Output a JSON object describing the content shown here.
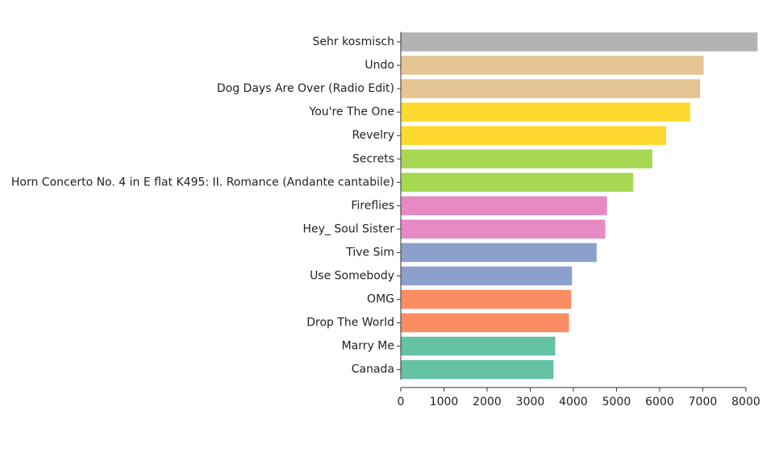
{
  "chart_data": {
    "type": "bar",
    "orientation": "horizontal",
    "title": "",
    "xlabel": "",
    "ylabel": "",
    "xlim": [
      0,
      8300
    ],
    "xticks": [
      0,
      1000,
      2000,
      3000,
      4000,
      5000,
      6000,
      7000,
      8000
    ],
    "grid": false,
    "legend": "none",
    "categories": [
      "Sehr kosmisch",
      "Undo",
      "Dog Days Are Over (Radio Edit)",
      "You're The One",
      "Revelry",
      "Secrets",
      "Horn Concerto No. 4 in E flat K495: II. Romance (Andante cantabile)",
      "Fireflies",
      "Hey_ Soul Sister",
      "Tive Sim",
      "Use Somebody",
      "OMG",
      "Drop The World",
      "Marry Me",
      "Canada"
    ],
    "values": [
      8270,
      7020,
      6940,
      6710,
      6150,
      5830,
      5390,
      4780,
      4740,
      4540,
      3970,
      3950,
      3900,
      3580,
      3540
    ],
    "colors": [
      "#b3b3b3",
      "#e5c494",
      "#e5c494",
      "#ffd92f",
      "#ffd92f",
      "#a6d854",
      "#a6d854",
      "#e78ac3",
      "#e78ac3",
      "#8da0cb",
      "#8da0cb",
      "#fc8d62",
      "#fc8d62",
      "#66c2a5",
      "#66c2a5"
    ]
  }
}
